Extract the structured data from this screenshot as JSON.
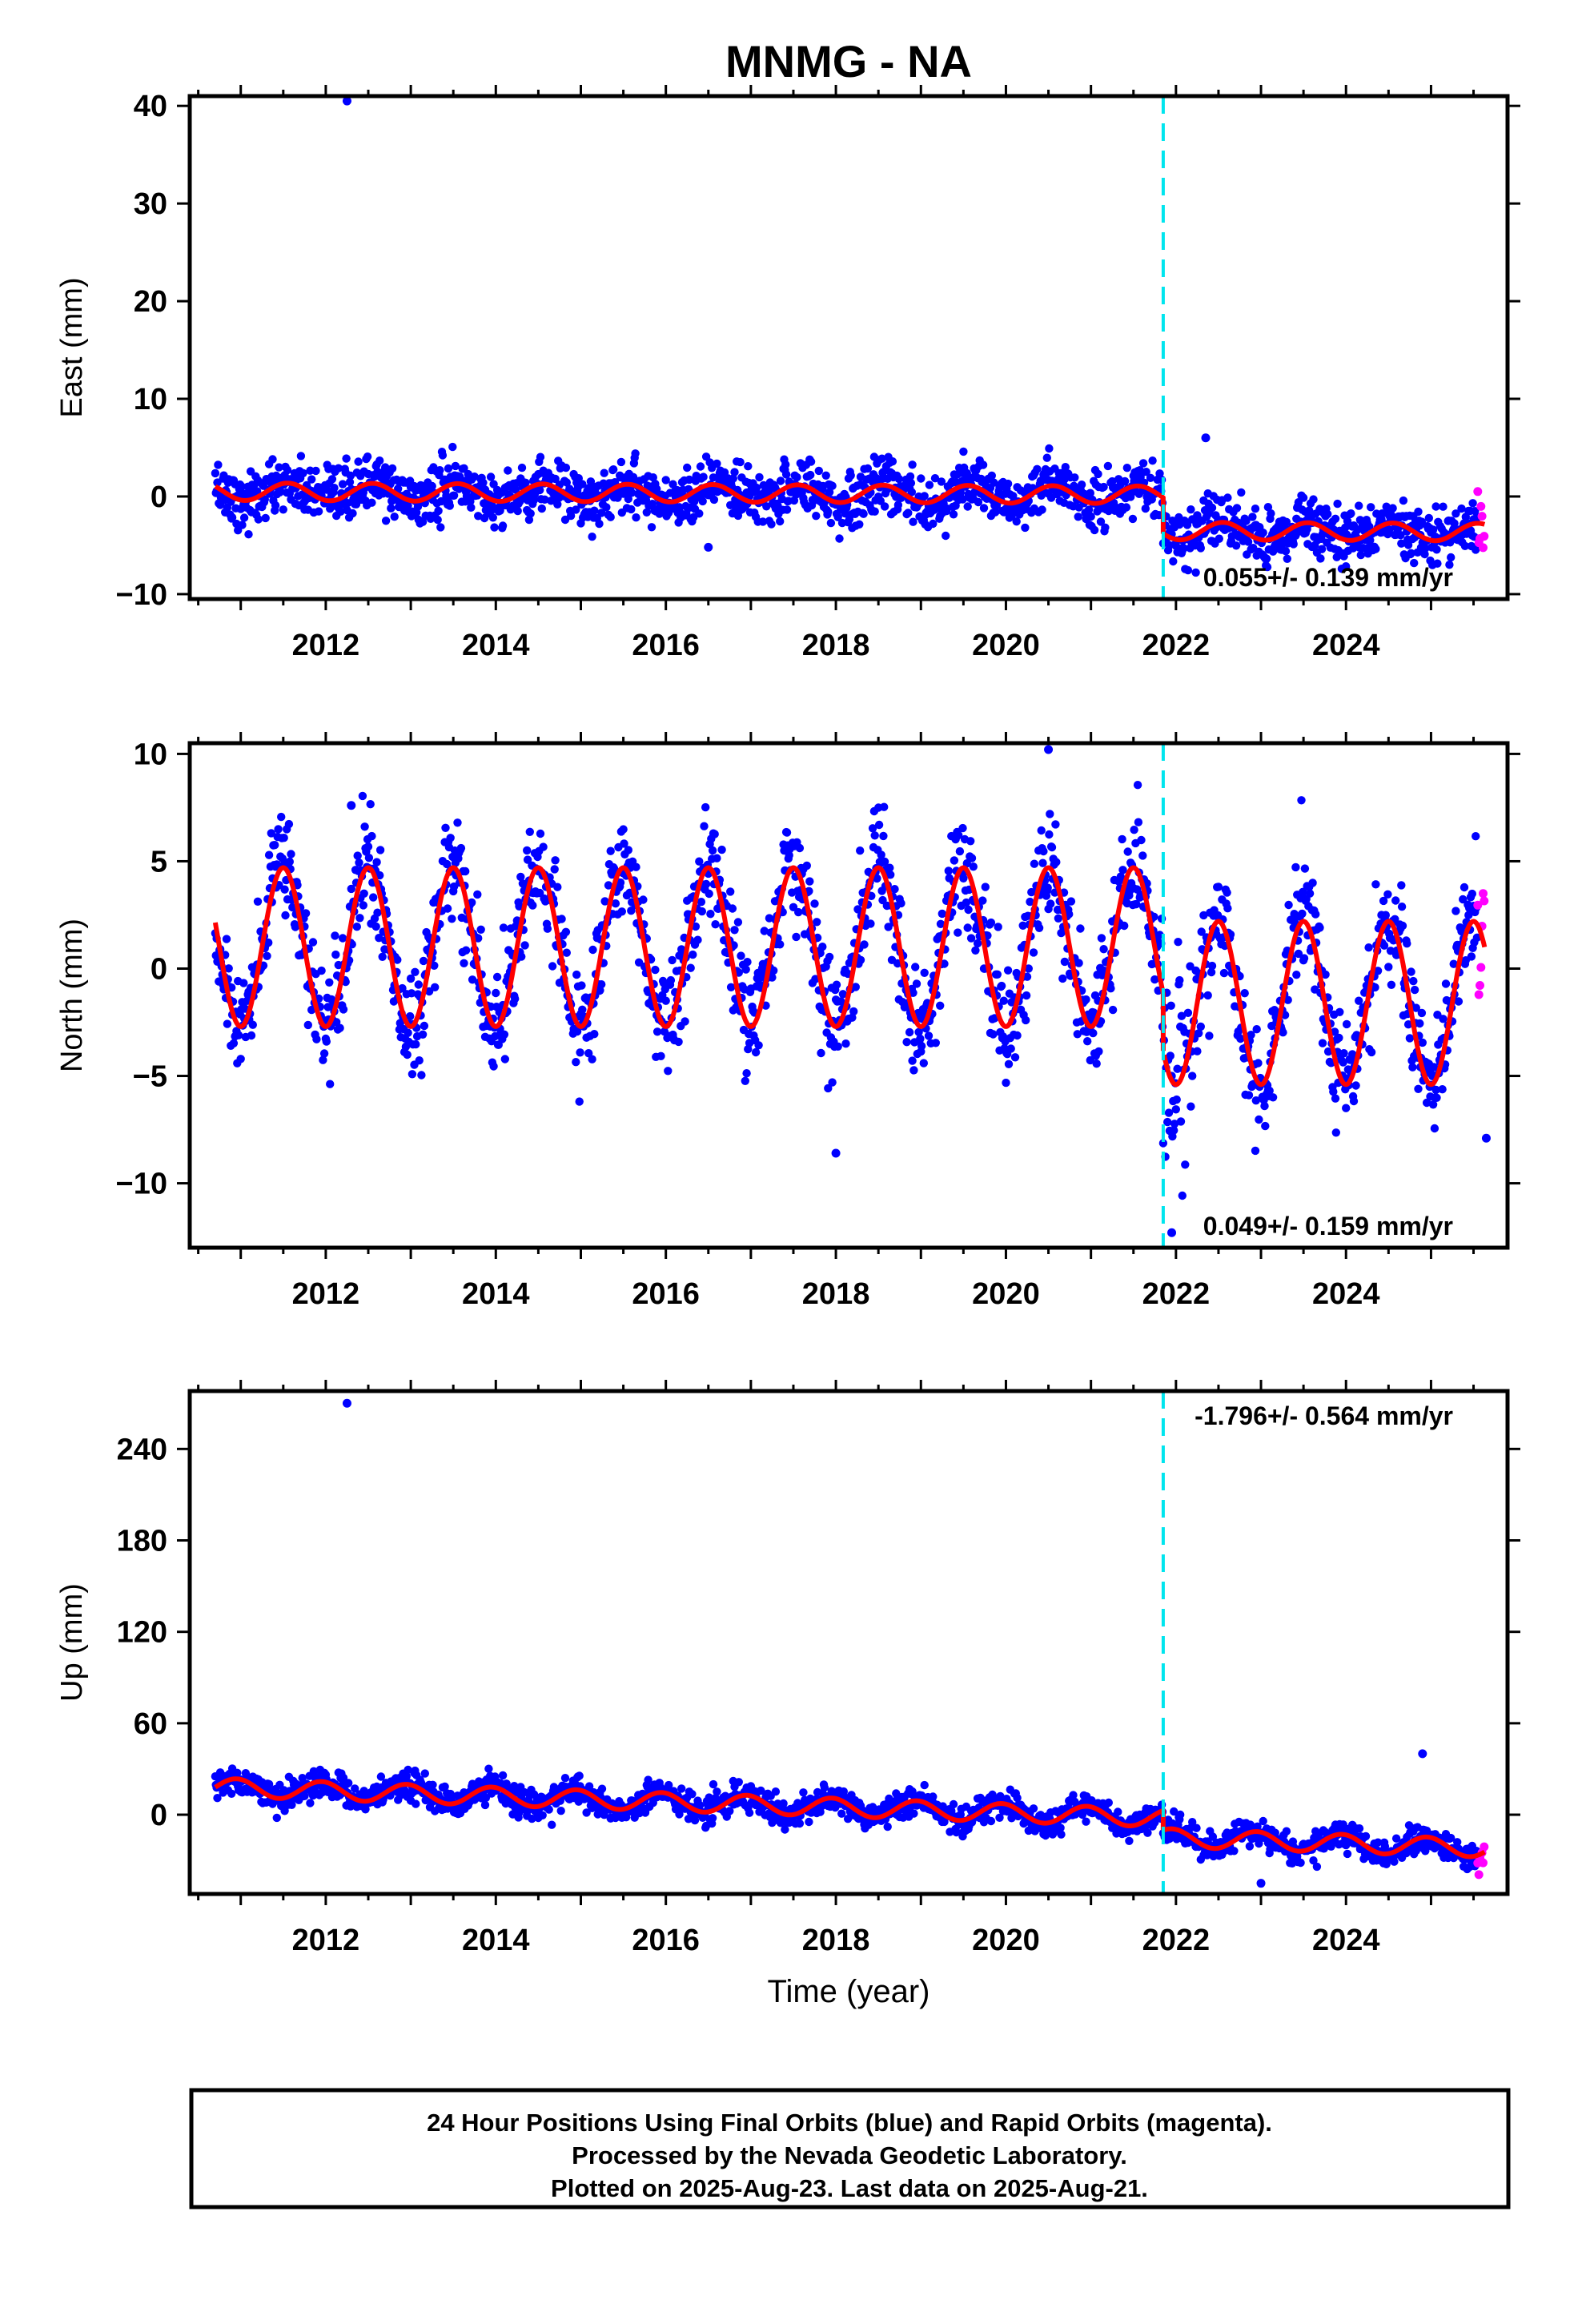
{
  "title": "MNMG - NA",
  "x_axis_label": "Time (year)",
  "caption": [
    "24 Hour Positions Using Final Orbits (blue) and Rapid Orbits (magenta).",
    "Processed by the Nevada Geodetic Laboratory.",
    "Plotted on 2025-Aug-23. Last data on 2025-Aug-21."
  ],
  "colors": {
    "final_orbits": "#0000ff",
    "rapid_orbits": "#ff00ff",
    "model_fit": "#ff0000",
    "equipment_change": "#00e5ee",
    "frame": "#000000"
  },
  "chart_data": [
    {
      "type": "scatter",
      "ylabel": "East (mm)",
      "xlim": [
        2010.4,
        2025.9
      ],
      "ylim": [
        -10.5,
        41
      ],
      "x_ticks": [
        "2012",
        "2014",
        "2016",
        "2018",
        "2020",
        "2022",
        "2024"
      ],
      "y_ticks": [
        "−10",
        "0",
        "10",
        "20",
        "30",
        "40"
      ],
      "rate_label": "0.055+/- 0.139 mm/yr",
      "rate_position": "bottom-right",
      "equipment_change_year": 2021.85,
      "data_span": [
        2010.7,
        2025.63
      ],
      "rapid_from": 2025.55,
      "model": {
        "offset_before": 0.5,
        "offset_after": -3.2,
        "annual_amplitude": 0.9,
        "annual_phase_peak": 0.55,
        "scatter": 1.4
      },
      "outliers": [
        {
          "x": 2012.25,
          "y": 40.5
        },
        {
          "x": 2022.35,
          "y": 6.0
        },
        {
          "x": 2016.5,
          "y": -5.2
        }
      ],
      "series": [
        {
          "name": "Final Orbits"
        },
        {
          "name": "Rapid Orbits"
        },
        {
          "name": "Model"
        }
      ]
    },
    {
      "type": "scatter",
      "ylabel": "North (mm)",
      "xlim": [
        2010.4,
        2025.9
      ],
      "ylim": [
        -13,
        10.5
      ],
      "x_ticks": [
        "2012",
        "2014",
        "2016",
        "2018",
        "2020",
        "2022",
        "2024"
      ],
      "y_ticks": [
        "−10",
        "−5",
        "0",
        "5",
        "10"
      ],
      "rate_label": "0.049+/- 0.159 mm/yr",
      "rate_position": "bottom-right",
      "equipment_change_year": 2021.85,
      "data_span": [
        2010.7,
        2025.63
      ],
      "rapid_from": 2025.55,
      "model": {
        "offset_before": 1.0,
        "offset_after": -1.6,
        "annual_amplitude_before": 3.7,
        "annual_amplitude_after": 3.8,
        "annual_phase_peak": 0.5,
        "scatter": 1.3
      },
      "outliers": [
        {
          "x": 2020.5,
          "y": 10.2
        },
        {
          "x": 2012.3,
          "y": 7.6
        },
        {
          "x": 2018.0,
          "y": -8.6
        },
        {
          "x": 2021.95,
          "y": -12.3
        },
        {
          "x": 2025.65,
          "y": -7.9
        }
      ],
      "series": [
        {
          "name": "Final Orbits"
        },
        {
          "name": "Rapid Orbits"
        },
        {
          "name": "Model"
        }
      ]
    },
    {
      "type": "scatter",
      "ylabel": "Up (mm)",
      "xlim": [
        2010.4,
        2025.9
      ],
      "ylim": [
        -52,
        278
      ],
      "x_ticks": [
        "2012",
        "2014",
        "2016",
        "2018",
        "2020",
        "2022",
        "2024"
      ],
      "y_ticks": [
        "0",
        "60",
        "120",
        "180",
        "240"
      ],
      "rate_label": "-1.796+/- 0.564 mm/yr",
      "rate_position": "top-right",
      "equipment_change_year": 2021.85,
      "data_span": [
        2010.7,
        2025.63
      ],
      "rapid_from": 2025.55,
      "model": {
        "start_value": 18,
        "trend_per_year": -1.8,
        "offset_after": -13,
        "annual_amplitude": 6,
        "annual_phase_peak": 0.95,
        "scatter": 4.5
      },
      "outliers": [
        {
          "x": 2012.25,
          "y": 270
        },
        {
          "x": 2024.9,
          "y": 40
        },
        {
          "x": 2023.0,
          "y": -45
        }
      ],
      "series": [
        {
          "name": "Final Orbits"
        },
        {
          "name": "Rapid Orbits"
        },
        {
          "name": "Model"
        }
      ]
    }
  ]
}
